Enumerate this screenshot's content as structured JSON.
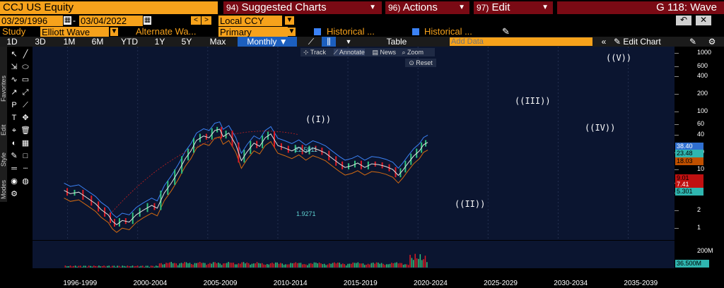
{
  "header": {
    "ticker": "CCJ US Equity",
    "suggested": {
      "num": "94)",
      "label": "Suggested Charts"
    },
    "actions": {
      "num": "96)",
      "label": "Actions"
    },
    "edit": {
      "num": "97)",
      "label": "Edit"
    },
    "page": "G 118: Wave"
  },
  "controls": {
    "start_date": "03/29/1996",
    "end_date": "03/04/2022",
    "currency": "Local CCY",
    "study_label": "Study",
    "study": "Elliott Wave",
    "alternate": "Alternate Wa...",
    "primary": "Primary",
    "historical1": "Historical ...",
    "historical2": "Historical ..."
  },
  "toolbar": {
    "timeframes": [
      "1D",
      "3D",
      "1M",
      "6M",
      "YTD",
      "1Y",
      "5Y",
      "Max"
    ],
    "period": "Monthly ▼",
    "table": "Table",
    "add_data_placeholder": "Add Data",
    "edit_chart": "Edit Chart",
    "track": "Track",
    "annotate": "Annotate",
    "news": "News",
    "zoom": "Zoom",
    "reset": "Reset"
  },
  "sidebar": {
    "labels": [
      "Favorites",
      "Edit",
      "Style",
      "Modes"
    ]
  },
  "chart_data": {
    "type": "line",
    "yscale": "log",
    "y_ticks": [
      1000,
      600,
      400,
      200,
      100,
      60,
      40,
      20,
      10,
      6,
      4,
      2,
      1
    ],
    "x_ticks": [
      "1996-1999",
      "2000-2004",
      "2005-2009",
      "2010-2014",
      "2015-2019",
      "2020-2024",
      "2025-2029",
      "2030-2034",
      "2035-2039"
    ],
    "price_labels": [
      {
        "text": "38.40",
        "color": "#2f6fd0"
      },
      {
        "text": "23.48",
        "color": "#2fb6b0"
      },
      {
        "text": "18.03",
        "color": "#c05000"
      },
      {
        "text": "9.01",
        "color": "#c01010"
      },
      {
        "text": "7.41",
        "color": "#c01010"
      },
      {
        "text": "5.301",
        "color": "#2fb6b0"
      }
    ],
    "annotations": [
      "22.5811",
      "1.9271"
    ],
    "wave_labels": [
      "((I))",
      "((II))",
      "((III))",
      "((IV))",
      "((V))"
    ],
    "volume_ticks": [
      "200M",
      "36.500M"
    ],
    "series": [
      {
        "values": [
          [
            1996.25,
            1.05
          ],
          [
            1996.7,
            0.92
          ],
          [
            1997.3,
            0.98
          ],
          [
            1997.9,
            0.78
          ],
          [
            1998.5,
            0.62
          ],
          [
            1998.9,
            0.49
          ],
          [
            1999.4,
            0.4
          ],
          [
            1999.7,
            0.31
          ],
          [
            2000.0,
            0.27
          ],
          [
            2000.4,
            0.32
          ],
          [
            2000.9,
            0.3
          ],
          [
            2001.4,
            0.4
          ],
          [
            2001.9,
            0.48
          ],
          [
            2002.5,
            0.58
          ],
          [
            2002.9,
            0.52
          ],
          [
            2003.4,
            0.95
          ],
          [
            2003.9,
            1.4
          ],
          [
            2004.4,
            2.2
          ],
          [
            2004.9,
            3.7
          ],
          [
            2005.3,
            5.0
          ],
          [
            2005.7,
            7.6
          ],
          [
            2006.2,
            9.0
          ],
          [
            2006.6,
            8.4
          ],
          [
            2007.0,
            11.2
          ],
          [
            2007.35,
            11.8
          ],
          [
            2007.6,
            8.8
          ],
          [
            2008.0,
            10.2
          ],
          [
            2008.5,
            6.4
          ],
          [
            2008.9,
            3.4
          ],
          [
            2009.3,
            4.8
          ],
          [
            2009.8,
            6.8
          ],
          [
            2010.2,
            6.0
          ],
          [
            2010.6,
            8.4
          ],
          [
            2011.0,
            9.8
          ],
          [
            2011.5,
            6.2
          ],
          [
            2012.0,
            5.6
          ],
          [
            2012.5,
            5.0
          ],
          [
            2013.0,
            5.8
          ],
          [
            2013.5,
            4.7
          ],
          [
            2014.0,
            5.6
          ],
          [
            2014.4,
            5.2
          ],
          [
            2014.9,
            4.6
          ],
          [
            2015.4,
            3.7
          ],
          [
            2015.9,
            3.0
          ],
          [
            2016.3,
            2.6
          ],
          [
            2016.8,
            2.8
          ],
          [
            2017.2,
            3.1
          ],
          [
            2017.7,
            2.6
          ],
          [
            2018.2,
            3.0
          ],
          [
            2018.7,
            2.9
          ],
          [
            2019.2,
            2.7
          ],
          [
            2019.7,
            2.4
          ],
          [
            2020.1,
            1.9
          ],
          [
            2020.4,
            2.3
          ],
          [
            2020.8,
            3.1
          ],
          [
            2021.2,
            4.1
          ],
          [
            2021.6,
            5.0
          ],
          [
            2021.9,
            6.4
          ],
          [
            2022.2,
            7.0
          ]
        ]
      }
    ]
  }
}
